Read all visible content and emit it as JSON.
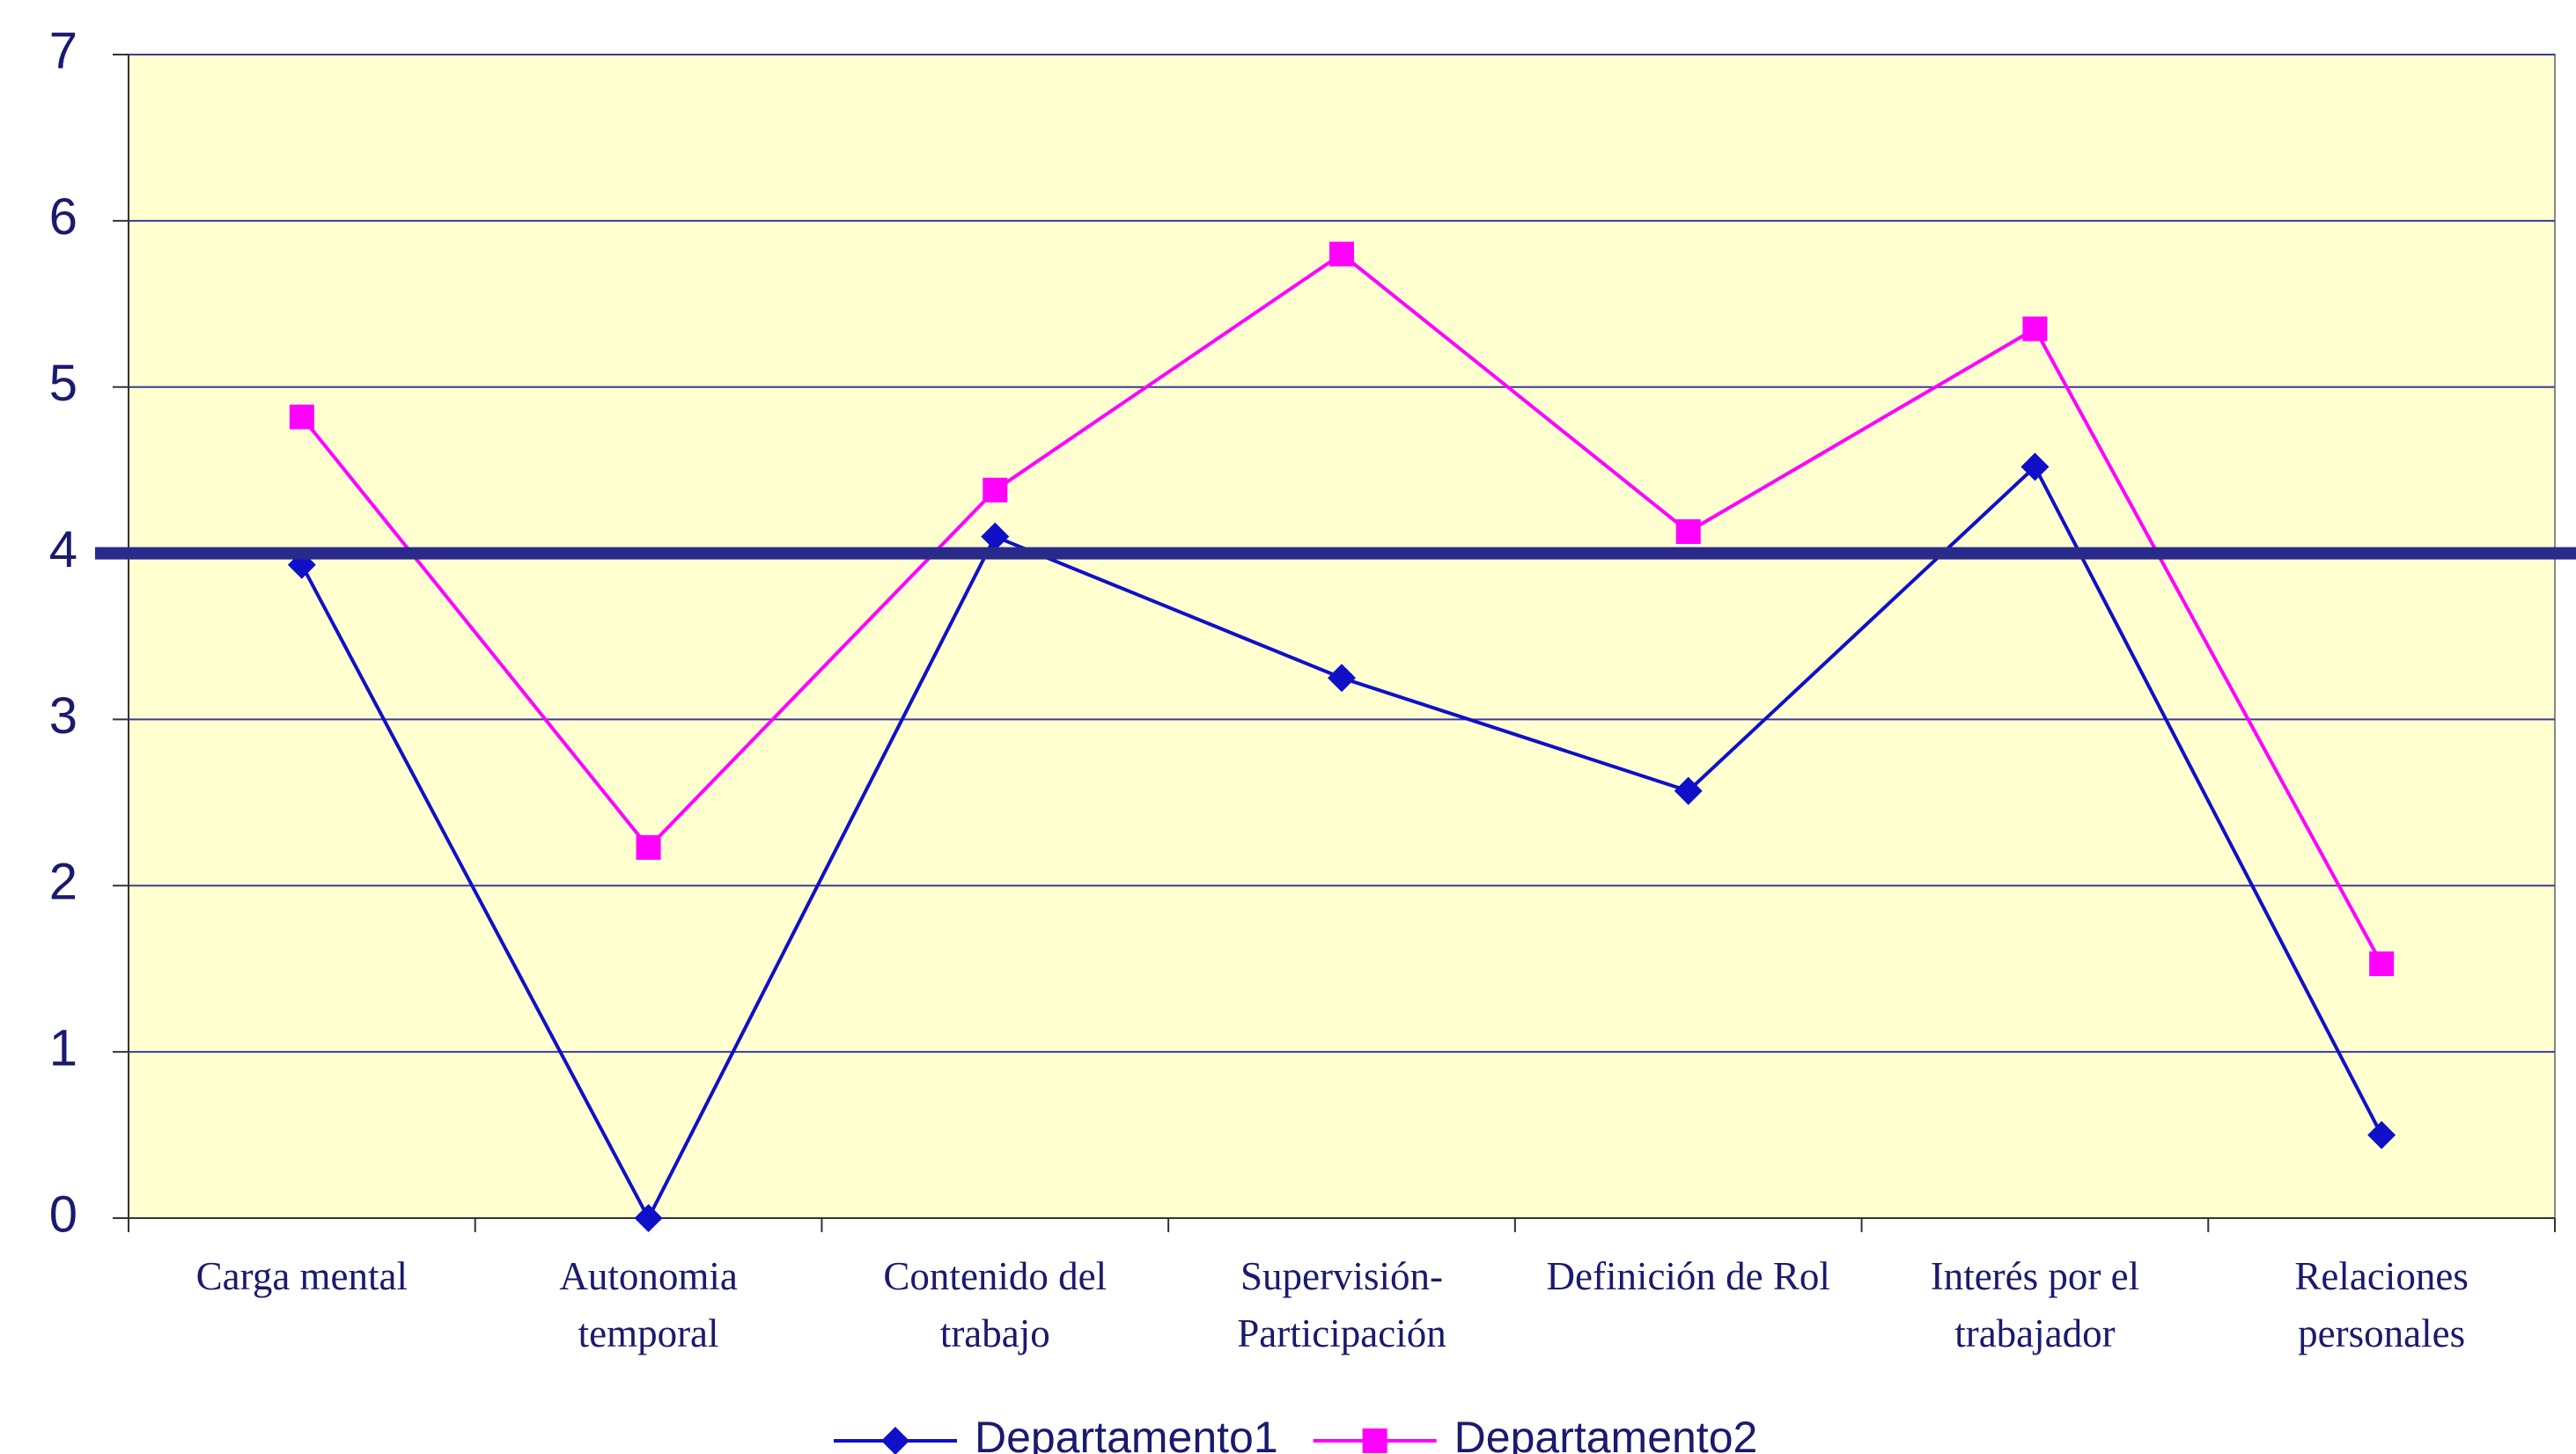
{
  "chart_data": {
    "type": "line",
    "categories": [
      [
        "Carga mental"
      ],
      [
        "Autonomia",
        "temporal"
      ],
      [
        "Contenido del",
        "trabajo"
      ],
      [
        "Supervisión-",
        "Participación"
      ],
      [
        "Definición de Rol"
      ],
      [
        "Interés por el",
        "trabajador"
      ],
      [
        "Relaciones",
        "personales"
      ]
    ],
    "series": [
      {
        "name": "Departamento1",
        "color": "#1010c8",
        "marker": "diamond",
        "values": [
          3.93,
          0,
          4.1,
          3.25,
          2.57,
          4.52,
          0.5
        ]
      },
      {
        "name": "Departamento2",
        "color": "#ff00ff",
        "marker": "square",
        "values": [
          4.82,
          2.23,
          4.38,
          5.8,
          4.13,
          5.35,
          1.53
        ]
      }
    ],
    "reference_line": {
      "value": 4,
      "color": "#2a2a8a"
    },
    "ylim": [
      0,
      7
    ],
    "yticks": [
      0,
      1,
      2,
      3,
      4,
      5,
      6,
      7
    ],
    "grid": true,
    "legend": "bottom"
  }
}
